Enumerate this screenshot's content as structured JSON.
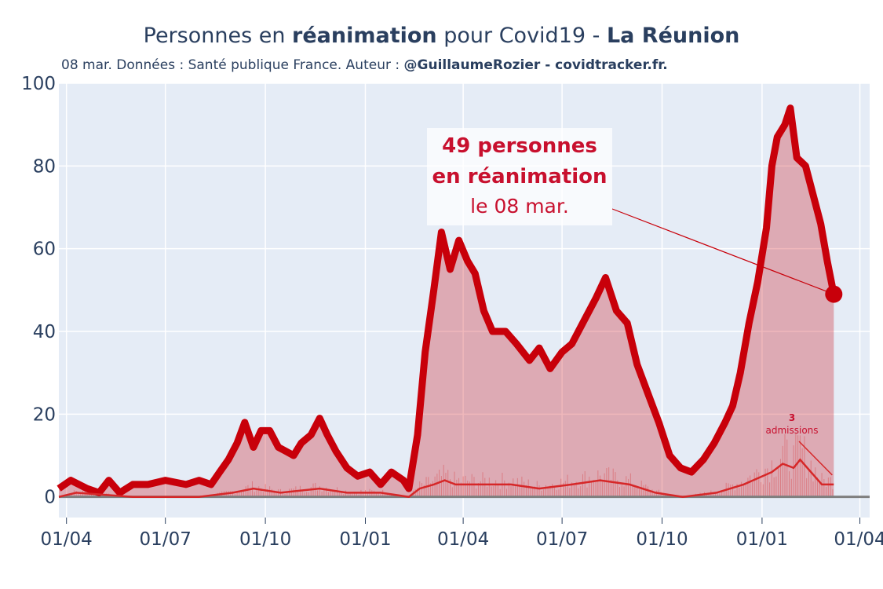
{
  "header": {
    "title_pre": "Personnes en ",
    "title_bold1": "réanimation",
    "title_mid": " pour Covid19 - ",
    "title_bold2": "La Réunion",
    "subtitle_pre": "08 mar. Données : Santé publique France. Auteur : ",
    "subtitle_bold": "@GuillaumeRozier - covidtracker.fr."
  },
  "annotation": {
    "line1": "49 personnes",
    "line2": "en réanimation",
    "line3": "le 08 mar.",
    "admissions_value": "3",
    "admissions_label": "admissions"
  },
  "colors": {
    "plot_bg": "#e5ecf6",
    "main_line": "#c8000a",
    "fill": "rgba(200,0,10,0.28)",
    "admissions_line": "#d62728",
    "text": "#2a3f5f"
  },
  "chart_data": {
    "type": "area",
    "title": "Personnes en réanimation pour Covid19 - La Réunion",
    "xlabel": "",
    "ylabel": "",
    "ylim": [
      -5,
      100
    ],
    "yticks": [
      0,
      20,
      40,
      60,
      80,
      100
    ],
    "x_start": "2020-03-25",
    "x_end": "2022-04-10",
    "xticks": [
      {
        "date": "2020-04-01",
        "label": "01/04"
      },
      {
        "date": "2020-07-01",
        "label": "01/07"
      },
      {
        "date": "2020-10-01",
        "label": "01/10"
      },
      {
        "date": "2021-01-01",
        "label": "01/01"
      },
      {
        "date": "2021-04-01",
        "label": "01/04"
      },
      {
        "date": "2021-07-01",
        "label": "01/07"
      },
      {
        "date": "2021-10-01",
        "label": "01/10"
      },
      {
        "date": "2022-01-01",
        "label": "01/01"
      },
      {
        "date": "2022-04-01",
        "label": "01/04"
      }
    ],
    "series": [
      {
        "name": "Personnes en réanimation",
        "points": [
          [
            "2020-03-25",
            2
          ],
          [
            "2020-04-05",
            4
          ],
          [
            "2020-04-20",
            2
          ],
          [
            "2020-05-01",
            1
          ],
          [
            "2020-05-10",
            4
          ],
          [
            "2020-05-20",
            1
          ],
          [
            "2020-06-01",
            3
          ],
          [
            "2020-06-15",
            3
          ],
          [
            "2020-07-01",
            4
          ],
          [
            "2020-07-20",
            3
          ],
          [
            "2020-08-01",
            4
          ],
          [
            "2020-08-12",
            3
          ],
          [
            "2020-08-20",
            6
          ],
          [
            "2020-08-28",
            9
          ],
          [
            "2020-09-05",
            13
          ],
          [
            "2020-09-12",
            18
          ],
          [
            "2020-09-20",
            12
          ],
          [
            "2020-09-27",
            16
          ],
          [
            "2020-10-05",
            16
          ],
          [
            "2020-10-13",
            12
          ],
          [
            "2020-10-20",
            11
          ],
          [
            "2020-10-27",
            10
          ],
          [
            "2020-11-03",
            13
          ],
          [
            "2020-11-12",
            15
          ],
          [
            "2020-11-20",
            19
          ],
          [
            "2020-11-27",
            15
          ],
          [
            "2020-12-05",
            11
          ],
          [
            "2020-12-15",
            7
          ],
          [
            "2020-12-25",
            5
          ],
          [
            "2021-01-05",
            6
          ],
          [
            "2021-01-15",
            3
          ],
          [
            "2021-01-25",
            6
          ],
          [
            "2021-02-05",
            4
          ],
          [
            "2021-02-10",
            2
          ],
          [
            "2021-02-18",
            15
          ],
          [
            "2021-02-25",
            35
          ],
          [
            "2021-03-05",
            50
          ],
          [
            "2021-03-12",
            64
          ],
          [
            "2021-03-20",
            55
          ],
          [
            "2021-03-28",
            62
          ],
          [
            "2021-04-05",
            57
          ],
          [
            "2021-04-12",
            54
          ],
          [
            "2021-04-20",
            45
          ],
          [
            "2021-04-28",
            40
          ],
          [
            "2021-05-10",
            40
          ],
          [
            "2021-05-20",
            37
          ],
          [
            "2021-06-01",
            33
          ],
          [
            "2021-06-10",
            36
          ],
          [
            "2021-06-20",
            31
          ],
          [
            "2021-07-01",
            35
          ],
          [
            "2021-07-10",
            37
          ],
          [
            "2021-07-20",
            42
          ],
          [
            "2021-08-01",
            48
          ],
          [
            "2021-08-10",
            53
          ],
          [
            "2021-08-20",
            45
          ],
          [
            "2021-08-30",
            42
          ],
          [
            "2021-09-08",
            32
          ],
          [
            "2021-09-18",
            25
          ],
          [
            "2021-09-28",
            18
          ],
          [
            "2021-10-08",
            10
          ],
          [
            "2021-10-18",
            7
          ],
          [
            "2021-10-28",
            6
          ],
          [
            "2021-11-08",
            9
          ],
          [
            "2021-11-18",
            13
          ],
          [
            "2021-11-28",
            18
          ],
          [
            "2021-12-05",
            22
          ],
          [
            "2021-12-12",
            30
          ],
          [
            "2021-12-20",
            42
          ],
          [
            "2021-12-28",
            52
          ],
          [
            "2022-01-05",
            65
          ],
          [
            "2022-01-10",
            80
          ],
          [
            "2022-01-15",
            87
          ],
          [
            "2022-01-22",
            90
          ],
          [
            "2022-01-27",
            94
          ],
          [
            "2022-02-02",
            82
          ],
          [
            "2022-02-10",
            80
          ],
          [
            "2022-02-17",
            73
          ],
          [
            "2022-02-24",
            66
          ],
          [
            "2022-03-02",
            57
          ],
          [
            "2022-03-08",
            49
          ]
        ]
      },
      {
        "name": "Admissions",
        "points": [
          [
            "2020-03-25",
            0
          ],
          [
            "2020-04-10",
            1
          ],
          [
            "2020-06-01",
            0
          ],
          [
            "2020-08-01",
            0
          ],
          [
            "2020-09-01",
            1
          ],
          [
            "2020-09-20",
            2
          ],
          [
            "2020-10-15",
            1
          ],
          [
            "2020-11-20",
            2
          ],
          [
            "2020-12-15",
            1
          ],
          [
            "2021-01-15",
            1
          ],
          [
            "2021-02-10",
            0
          ],
          [
            "2021-02-20",
            2
          ],
          [
            "2021-03-05",
            3
          ],
          [
            "2021-03-15",
            4
          ],
          [
            "2021-03-25",
            3
          ],
          [
            "2021-04-20",
            3
          ],
          [
            "2021-05-15",
            3
          ],
          [
            "2021-06-10",
            2
          ],
          [
            "2021-07-10",
            3
          ],
          [
            "2021-08-05",
            4
          ],
          [
            "2021-09-01",
            3
          ],
          [
            "2021-09-25",
            1
          ],
          [
            "2021-10-20",
            0
          ],
          [
            "2021-11-20",
            1
          ],
          [
            "2021-12-15",
            3
          ],
          [
            "2022-01-10",
            6
          ],
          [
            "2022-01-20",
            8
          ],
          [
            "2022-01-30",
            7
          ],
          [
            "2022-02-05",
            9
          ],
          [
            "2022-02-15",
            6
          ],
          [
            "2022-02-25",
            3
          ],
          [
            "2022-03-08",
            3
          ]
        ]
      }
    ],
    "last_value": 49,
    "last_date": "2022-03-08",
    "admissions_last": 3
  }
}
